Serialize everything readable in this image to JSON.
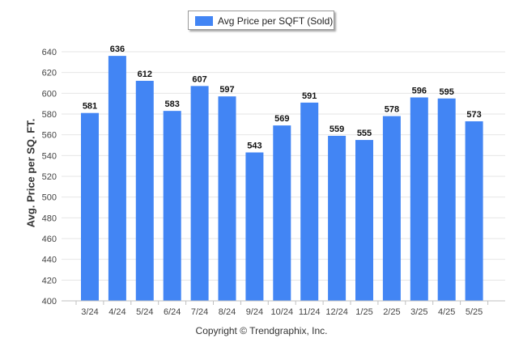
{
  "legend": {
    "label": "Avg Price per SQFT (Sold)"
  },
  "footer": {
    "copyright": "Copyright © Trendgraphix, Inc."
  },
  "chart_data": {
    "type": "bar",
    "title": "",
    "xlabel": "",
    "ylabel": "Avg. Price per SQ. FT.",
    "categories": [
      "3/24",
      "4/24",
      "5/24",
      "6/24",
      "7/24",
      "8/24",
      "9/24",
      "10/24",
      "11/24",
      "12/24",
      "1/25",
      "2/25",
      "3/25",
      "4/25",
      "5/25"
    ],
    "series": [
      {
        "name": "Avg Price per SQFT (Sold)",
        "values": [
          581,
          636,
          612,
          583,
          607,
          597,
          543,
          569,
          591,
          559,
          555,
          578,
          596,
          595,
          573
        ]
      }
    ],
    "ylim": [
      400,
      640
    ],
    "yticks": [
      400,
      420,
      440,
      460,
      480,
      500,
      520,
      540,
      560,
      580,
      600,
      620,
      640
    ],
    "grid": true,
    "legend_position": "top-center",
    "data_labels": true,
    "colors": {
      "bar": "#4285f4",
      "grid": "#e6e6e6",
      "axis": "#c0c0c0"
    }
  }
}
